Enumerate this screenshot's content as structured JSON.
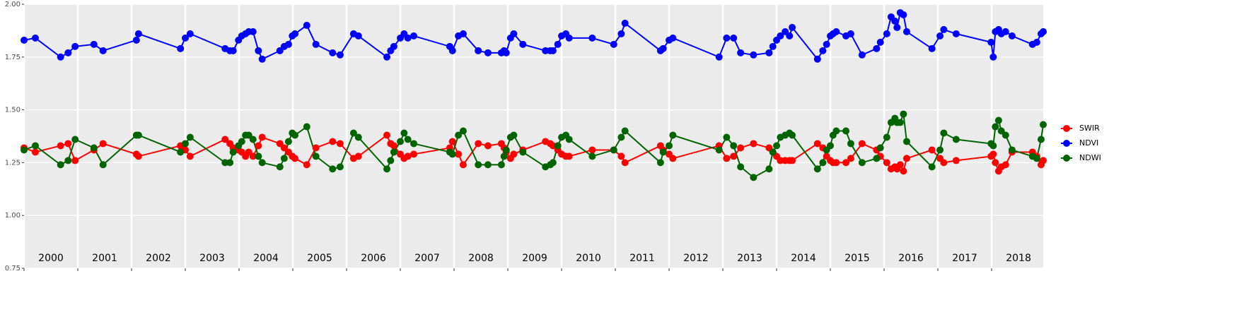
{
  "chart_data": {
    "type": "line",
    "x": [
      2000.0,
      2000.21,
      2000.68,
      2000.82,
      2000.95,
      2001.3,
      2001.47,
      2002.09,
      2002.13,
      2002.91,
      2003.0,
      2003.09,
      2003.74,
      2003.83,
      2003.89,
      2003.99,
      2004.05,
      2004.12,
      2004.18,
      2004.26,
      2004.36,
      2004.43,
      2004.76,
      2004.84,
      2004.92,
      2004.99,
      2005.04,
      2005.26,
      2005.43,
      2005.74,
      2005.88,
      2006.13,
      2006.22,
      2006.75,
      2006.82,
      2006.88,
      2007.0,
      2007.07,
      2007.14,
      2007.25,
      2007.92,
      2007.97,
      2008.08,
      2008.17,
      2008.45,
      2008.63,
      2008.88,
      2008.93,
      2008.97,
      2009.05,
      2009.11,
      2009.28,
      2009.7,
      2009.79,
      2009.84,
      2009.93,
      2010.0,
      2010.08,
      2010.14,
      2010.57,
      2010.97,
      2011.11,
      2011.18,
      2011.84,
      2011.89,
      2012.0,
      2012.07,
      2012.93,
      2013.07,
      2013.2,
      2013.33,
      2013.57,
      2013.86,
      2013.93,
      2014.0,
      2014.07,
      2014.16,
      2014.24,
      2014.29,
      2014.76,
      2014.86,
      2014.93,
      2015.0,
      2015.05,
      2015.11,
      2015.29,
      2015.38,
      2015.59,
      2015.86,
      2015.93,
      2016.05,
      2016.13,
      2016.2,
      2016.24,
      2016.3,
      2016.36,
      2016.42,
      2016.89,
      2017.04,
      2017.11,
      2017.34,
      2017.99,
      2018.03,
      2018.07,
      2018.13,
      2018.18,
      2018.26,
      2018.38,
      2018.76,
      2018.84,
      2018.92,
      2018.96
    ],
    "series": [
      {
        "name": "SWIR",
        "color": "#ff0000",
        "values": [
          1.32,
          1.3,
          1.33,
          1.34,
          1.26,
          1.31,
          1.34,
          1.29,
          1.28,
          1.33,
          1.31,
          1.28,
          1.36,
          1.34,
          1.32,
          1.31,
          1.3,
          1.28,
          1.3,
          1.28,
          1.33,
          1.37,
          1.34,
          1.32,
          1.3,
          1.28,
          1.27,
          1.24,
          1.32,
          1.35,
          1.34,
          1.27,
          1.28,
          1.38,
          1.34,
          1.33,
          1.29,
          1.27,
          1.28,
          1.29,
          1.32,
          1.35,
          1.29,
          1.24,
          1.34,
          1.33,
          1.34,
          1.32,
          1.3,
          1.27,
          1.29,
          1.31,
          1.35,
          1.34,
          1.33,
          1.31,
          1.29,
          1.28,
          1.28,
          1.31,
          1.31,
          1.28,
          1.25,
          1.33,
          1.31,
          1.29,
          1.27,
          1.33,
          1.27,
          1.28,
          1.32,
          1.34,
          1.32,
          1.3,
          1.28,
          1.26,
          1.26,
          1.26,
          1.26,
          1.34,
          1.32,
          1.28,
          1.26,
          1.25,
          1.25,
          1.25,
          1.27,
          1.34,
          1.31,
          1.28,
          1.25,
          1.22,
          1.23,
          1.22,
          1.24,
          1.21,
          1.27,
          1.31,
          1.27,
          1.25,
          1.26,
          1.28,
          1.29,
          1.25,
          1.21,
          1.23,
          1.24,
          1.3,
          1.3,
          1.28,
          1.24,
          1.26
        ]
      },
      {
        "name": "NDVI",
        "color": "#0000ff",
        "values": [
          1.83,
          1.84,
          1.75,
          1.77,
          1.8,
          1.81,
          1.78,
          1.83,
          1.86,
          1.79,
          1.84,
          1.86,
          1.79,
          1.78,
          1.78,
          1.83,
          1.85,
          1.86,
          1.87,
          1.87,
          1.78,
          1.74,
          1.78,
          1.8,
          1.81,
          1.85,
          1.86,
          1.9,
          1.81,
          1.77,
          1.76,
          1.86,
          1.85,
          1.75,
          1.78,
          1.8,
          1.84,
          1.86,
          1.84,
          1.85,
          1.8,
          1.78,
          1.85,
          1.86,
          1.78,
          1.77,
          1.77,
          1.78,
          1.77,
          1.84,
          1.86,
          1.81,
          1.78,
          1.78,
          1.78,
          1.81,
          1.85,
          1.86,
          1.84,
          1.84,
          1.81,
          1.86,
          1.91,
          1.78,
          1.79,
          1.83,
          1.84,
          1.75,
          1.84,
          1.84,
          1.77,
          1.76,
          1.77,
          1.8,
          1.83,
          1.85,
          1.87,
          1.85,
          1.89,
          1.74,
          1.78,
          1.81,
          1.85,
          1.86,
          1.87,
          1.85,
          1.86,
          1.76,
          1.79,
          1.82,
          1.86,
          1.94,
          1.92,
          1.89,
          1.96,
          1.95,
          1.87,
          1.79,
          1.85,
          1.88,
          1.86,
          1.82,
          1.75,
          1.87,
          1.88,
          1.86,
          1.87,
          1.85,
          1.81,
          1.82,
          1.86,
          1.87
        ]
      },
      {
        "name": "NDWI",
        "color": "#006400",
        "values": [
          1.31,
          1.33,
          1.24,
          1.26,
          1.36,
          1.32,
          1.24,
          1.38,
          1.38,
          1.3,
          1.34,
          1.37,
          1.25,
          1.25,
          1.3,
          1.33,
          1.35,
          1.38,
          1.38,
          1.36,
          1.28,
          1.25,
          1.23,
          1.27,
          1.35,
          1.39,
          1.38,
          1.42,
          1.28,
          1.22,
          1.23,
          1.39,
          1.37,
          1.22,
          1.26,
          1.3,
          1.35,
          1.39,
          1.36,
          1.34,
          1.3,
          1.29,
          1.38,
          1.4,
          1.24,
          1.24,
          1.24,
          1.28,
          1.31,
          1.37,
          1.38,
          1.3,
          1.23,
          1.24,
          1.25,
          1.33,
          1.37,
          1.38,
          1.36,
          1.28,
          1.31,
          1.37,
          1.4,
          1.25,
          1.3,
          1.33,
          1.38,
          1.31,
          1.37,
          1.33,
          1.23,
          1.18,
          1.22,
          1.3,
          1.33,
          1.37,
          1.38,
          1.39,
          1.38,
          1.22,
          1.25,
          1.31,
          1.33,
          1.38,
          1.4,
          1.4,
          1.34,
          1.25,
          1.27,
          1.32,
          1.37,
          1.44,
          1.46,
          1.44,
          1.44,
          1.48,
          1.35,
          1.23,
          1.31,
          1.39,
          1.36,
          1.34,
          1.33,
          1.42,
          1.45,
          1.4,
          1.38,
          1.31,
          1.28,
          1.27,
          1.36,
          1.43
        ]
      }
    ],
    "xlim": [
      2000,
      2018.96
    ],
    "xticks": [
      {
        "value": 2000,
        "label": "2000"
      },
      {
        "value": 2001,
        "label": "2001"
      },
      {
        "value": 2002,
        "label": "2002"
      },
      {
        "value": 2003,
        "label": "2003"
      },
      {
        "value": 2004,
        "label": "2004"
      },
      {
        "value": 2005,
        "label": "2005"
      },
      {
        "value": 2006,
        "label": "2006"
      },
      {
        "value": 2007,
        "label": "2007"
      },
      {
        "value": 2008,
        "label": "2008"
      },
      {
        "value": 2009,
        "label": "2009"
      },
      {
        "value": 2010,
        "label": "2010"
      },
      {
        "value": 2011,
        "label": "2011"
      },
      {
        "value": 2012,
        "label": "2012"
      },
      {
        "value": 2013,
        "label": "2013"
      },
      {
        "value": 2014,
        "label": "2014"
      },
      {
        "value": 2015,
        "label": "2015"
      },
      {
        "value": 2016,
        "label": "2016"
      },
      {
        "value": 2017,
        "label": "2017"
      },
      {
        "value": 2018,
        "label": "2018"
      }
    ],
    "ylim": [
      0.75,
      2
    ],
    "yticks": [
      0.75,
      {
        "value": 1,
        "label": "1.00"
      },
      1.25,
      {
        "value": 1.5,
        "label": "1.50"
      },
      1.75,
      {
        "value": 2,
        "label": "2.00"
      }
    ],
    "grid": true,
    "legend_position": "right"
  }
}
